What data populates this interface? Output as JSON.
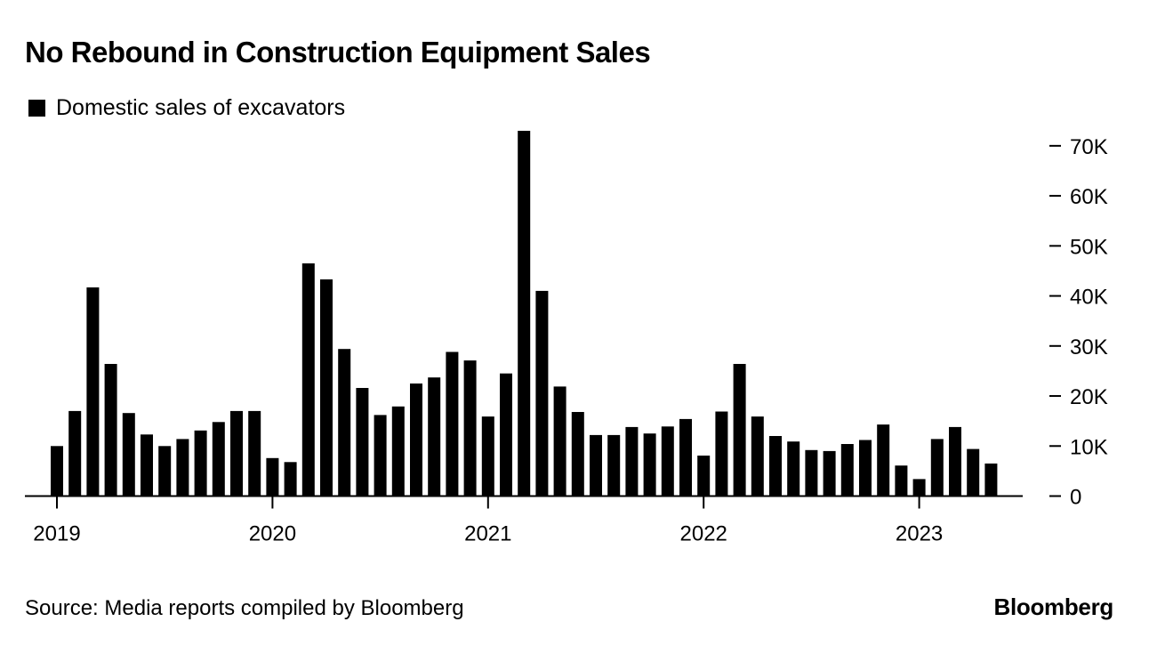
{
  "title": "No Rebound in Construction Equipment Sales",
  "source": "Source: Media reports compiled by Bloomberg",
  "brand": "Bloomberg",
  "colors": {
    "bar": "#000000",
    "background": "#ffffff"
  },
  "chart_data": {
    "type": "bar",
    "title": "No Rebound in Construction Equipment Sales",
    "legend": [
      "Domestic sales of excavators"
    ],
    "legend_position": "top-left",
    "xlabel": "",
    "ylabel": "",
    "ylim": [
      0,
      73000
    ],
    "y_ticks": [
      0,
      10000,
      20000,
      30000,
      40000,
      50000,
      60000,
      70000
    ],
    "y_tick_labels": [
      "0",
      "10K",
      "20K",
      "30K",
      "40K",
      "50K",
      "60K",
      "70K"
    ],
    "y_axis_side": "right",
    "x_tick_labels": [
      "2019",
      "2020",
      "2021",
      "2022",
      "2023"
    ],
    "x_tick_positions": [
      "2019-01",
      "2020-01",
      "2021-01",
      "2022-01",
      "2023-01"
    ],
    "categories": [
      "2019-01",
      "2019-02",
      "2019-03",
      "2019-04",
      "2019-05",
      "2019-06",
      "2019-07",
      "2019-08",
      "2019-09",
      "2019-10",
      "2019-11",
      "2019-12",
      "2020-01",
      "2020-02",
      "2020-03",
      "2020-04",
      "2020-05",
      "2020-06",
      "2020-07",
      "2020-08",
      "2020-09",
      "2020-10",
      "2020-11",
      "2020-12",
      "2021-01",
      "2021-02",
      "2021-03",
      "2021-04",
      "2021-05",
      "2021-06",
      "2021-07",
      "2021-08",
      "2021-09",
      "2021-10",
      "2021-11",
      "2021-12",
      "2022-01",
      "2022-02",
      "2022-03",
      "2022-04",
      "2022-05",
      "2022-06",
      "2022-07",
      "2022-08",
      "2022-09",
      "2022-10",
      "2022-11",
      "2022-12",
      "2023-01",
      "2023-02",
      "2023-03",
      "2023-04",
      "2023-05"
    ],
    "series": [
      {
        "name": "Domestic sales of excavators",
        "values": [
          10000,
          17000,
          41700,
          26400,
          16600,
          12300,
          10000,
          11400,
          13100,
          14800,
          17000,
          17000,
          7600,
          6800,
          46500,
          43300,
          29400,
          21600,
          16200,
          17900,
          22500,
          23700,
          28800,
          27100,
          15900,
          24500,
          73000,
          41000,
          21900,
          16800,
          12200,
          12200,
          13800,
          12500,
          13900,
          15400,
          8100,
          16900,
          26400,
          15900,
          12000,
          10900,
          9200,
          9000,
          10400,
          11200,
          14300,
          6100,
          3400,
          11400,
          13800,
          9400,
          6500
        ]
      }
    ]
  }
}
